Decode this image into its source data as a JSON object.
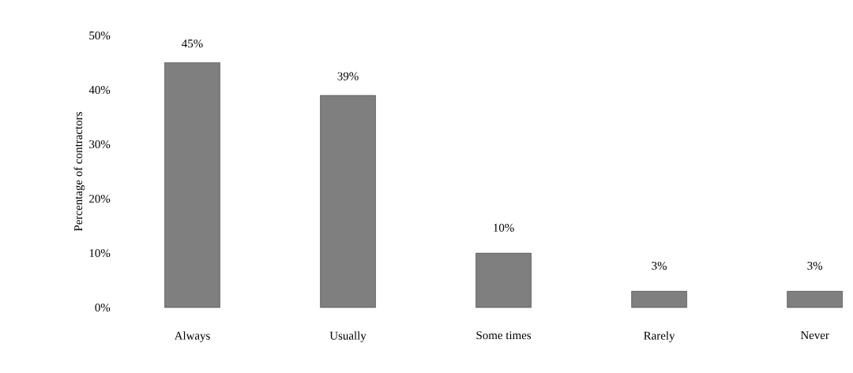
{
  "chart_data": {
    "type": "bar",
    "ylabel": "Percentage of contractors",
    "categories": [
      "Always",
      "Usually",
      "Some times",
      "Rarely",
      "Never"
    ],
    "values": [
      45,
      39,
      10,
      3,
      3
    ],
    "value_labels": [
      "45%",
      "39%",
      "10%",
      "3%",
      "3%"
    ],
    "color": "#7f7f7f",
    "ylim": [
      0,
      50
    ],
    "yticks": [
      {
        "value": 0,
        "label": "0%"
      },
      {
        "value": 10,
        "label": "10%"
      },
      {
        "value": 20,
        "label": "20%"
      },
      {
        "value": 30,
        "label": "30%"
      },
      {
        "value": 40,
        "label": "40%"
      },
      {
        "value": 50,
        "label": "50%"
      }
    ]
  }
}
